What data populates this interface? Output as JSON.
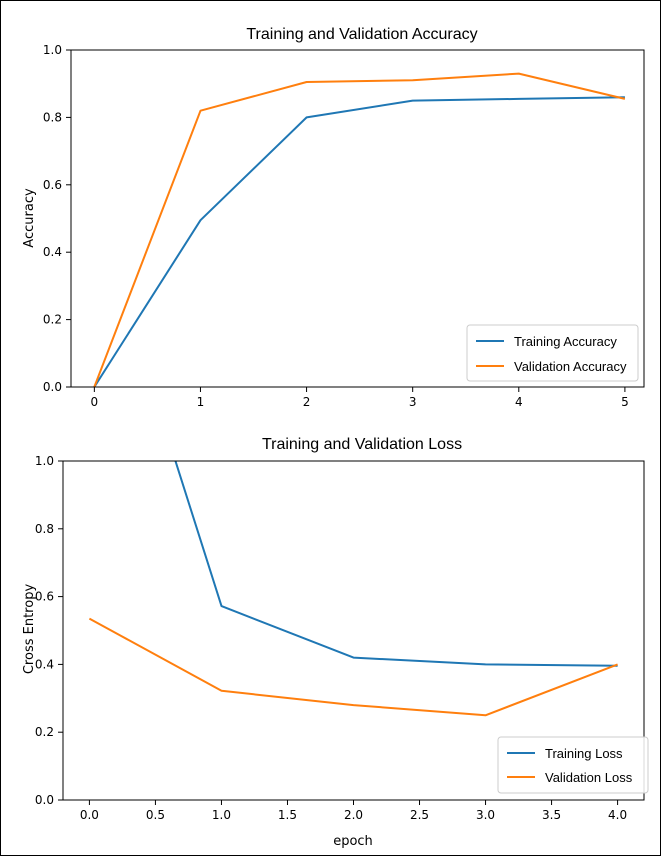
{
  "colors": {
    "training": "#1f77b4",
    "validation": "#ff7f0e"
  },
  "chart_data": [
    {
      "type": "line",
      "title": "Training and Validation Accuracy",
      "xlabel": "",
      "ylabel": "Accuracy",
      "xlim": [
        -0.22,
        5.18
      ],
      "ylim": [
        0.0,
        1.0
      ],
      "xticks": [
        0,
        1,
        2,
        3,
        4,
        5
      ],
      "xtick_labels": [
        "0",
        "1",
        "2",
        "3",
        "4",
        "5"
      ],
      "yticks": [
        0.0,
        0.2,
        0.4,
        0.6,
        0.8,
        1.0
      ],
      "ytick_labels": [
        "0.0",
        "0.2",
        "0.4",
        "0.6",
        "0.8",
        "1.0"
      ],
      "grid": false,
      "legend_position": "bottom-right",
      "series": [
        {
          "name": "Training Accuracy",
          "color": "#1f77b4",
          "x": [
            0,
            1,
            2,
            3,
            4,
            5
          ],
          "y": [
            0.0,
            0.495,
            0.8,
            0.85,
            0.855,
            0.86
          ]
        },
        {
          "name": "Validation Accuracy",
          "color": "#ff7f0e",
          "x": [
            0,
            1,
            2,
            3,
            4,
            5
          ],
          "y": [
            0.0,
            0.82,
            0.905,
            0.91,
            0.93,
            0.855
          ]
        }
      ]
    },
    {
      "type": "line",
      "title": "Training and Validation Loss",
      "xlabel": "epoch",
      "ylabel": "Cross Entropy",
      "xlim": [
        -0.2,
        4.2
      ],
      "ylim": [
        0.0,
        1.0
      ],
      "xticks": [
        0.0,
        0.5,
        1.0,
        1.5,
        2.0,
        2.5,
        3.0,
        3.5,
        4.0
      ],
      "xtick_labels": [
        "0.0",
        "0.5",
        "1.0",
        "1.5",
        "2.0",
        "2.5",
        "3.0",
        "3.5",
        "4.0"
      ],
      "yticks": [
        0.0,
        0.2,
        0.4,
        0.6,
        0.8,
        1.0
      ],
      "ytick_labels": [
        "0.0",
        "0.2",
        "0.4",
        "0.6",
        "0.8",
        "1.0"
      ],
      "grid": false,
      "legend_position": "bottom-right",
      "series": [
        {
          "name": "Training Loss",
          "color": "#1f77b4",
          "x": [
            0,
            1,
            2,
            3,
            4
          ],
          "y": [
            1.8,
            0.572,
            0.42,
            0.4,
            0.396
          ]
        },
        {
          "name": "Validation Loss",
          "color": "#ff7f0e",
          "x": [
            0,
            1,
            2,
            3,
            4
          ],
          "y": [
            0.535,
            0.322,
            0.28,
            0.25,
            0.4
          ]
        }
      ]
    }
  ]
}
